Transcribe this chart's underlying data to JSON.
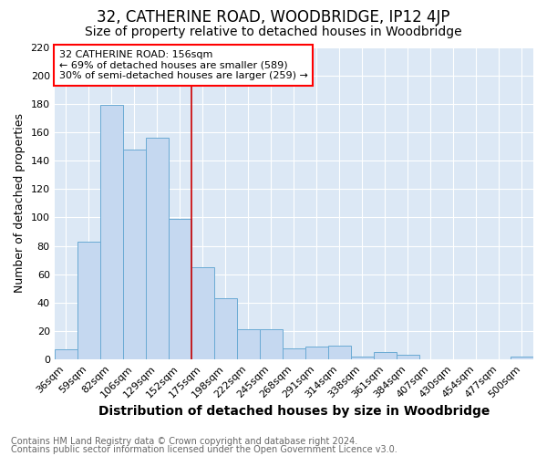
{
  "title": "32, CATHERINE ROAD, WOODBRIDGE, IP12 4JP",
  "subtitle": "Size of property relative to detached houses in Woodbridge",
  "xlabel": "Distribution of detached houses by size in Woodbridge",
  "ylabel": "Number of detached properties",
  "footnote1": "Contains HM Land Registry data © Crown copyright and database right 2024.",
  "footnote2": "Contains public sector information licensed under the Open Government Licence v3.0.",
  "bar_labels": [
    "36sqm",
    "59sqm",
    "82sqm",
    "106sqm",
    "129sqm",
    "152sqm",
    "175sqm",
    "198sqm",
    "222sqm",
    "245sqm",
    "268sqm",
    "291sqm",
    "314sqm",
    "338sqm",
    "361sqm",
    "384sqm",
    "407sqm",
    "430sqm",
    "454sqm",
    "477sqm",
    "500sqm"
  ],
  "bar_values": [
    7,
    83,
    179,
    148,
    156,
    99,
    65,
    43,
    21,
    21,
    8,
    9,
    10,
    2,
    5,
    3,
    0,
    0,
    0,
    0,
    2
  ],
  "bar_color": "#c5d8f0",
  "bar_edge_color": "#6aaad4",
  "vline_color": "#cc0000",
  "annotation_title": "32 CATHERINE ROAD: 156sqm",
  "annotation_line1": "← 69% of detached houses are smaller (589)",
  "annotation_line2": "30% of semi-detached houses are larger (259) →",
  "ylim": [
    0,
    220
  ],
  "yticks": [
    0,
    20,
    40,
    60,
    80,
    100,
    120,
    140,
    160,
    180,
    200,
    220
  ],
  "background_color": "#ffffff",
  "plot_bg_color": "#dce8f5",
  "grid_color": "#ffffff",
  "title_fontsize": 12,
  "subtitle_fontsize": 10,
  "xlabel_fontsize": 10,
  "ylabel_fontsize": 9,
  "tick_fontsize": 8,
  "annotation_fontsize": 8,
  "footnote_fontsize": 7
}
